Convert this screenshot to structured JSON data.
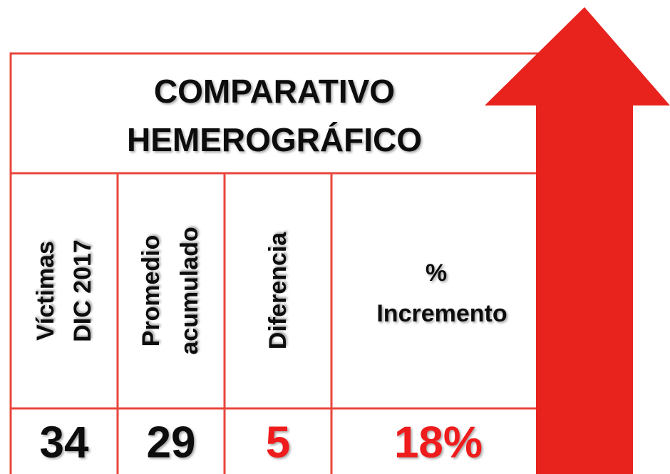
{
  "header": {
    "title": [
      "COMPARATIVO",
      "HEMEROGRÁFICO"
    ]
  },
  "table": {
    "headers": [
      [
        "Víctimas",
        "DIC 2017"
      ],
      [
        "Promedio",
        "acumulado"
      ],
      [
        "Diferencia"
      ],
      [
        "%",
        "Incremento"
      ]
    ],
    "rows": [
      [
        "34",
        "29",
        "5",
        "18%"
      ]
    ]
  }
}
